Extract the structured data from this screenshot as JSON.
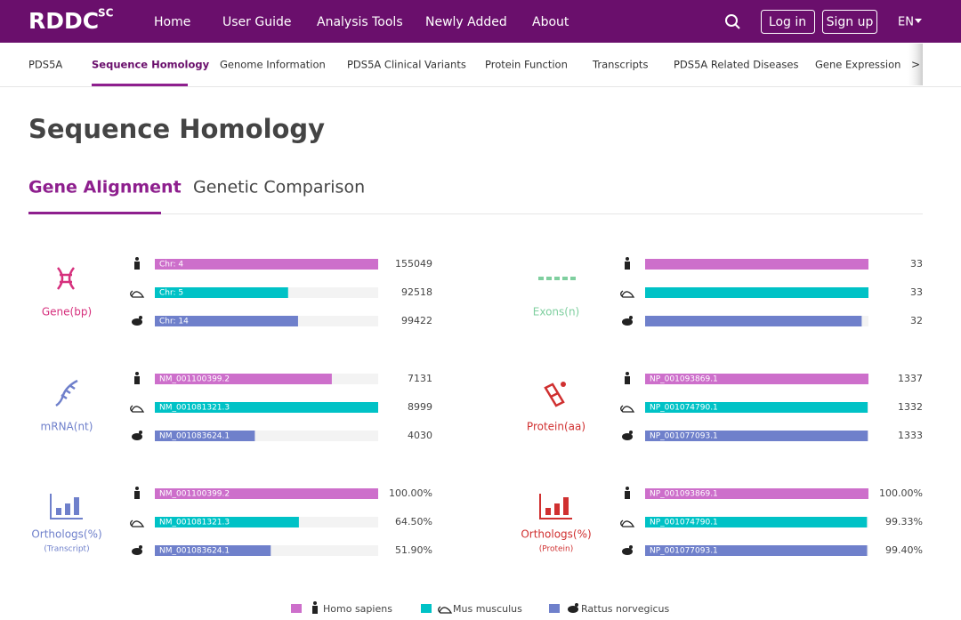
{
  "header": {
    "logo": "RDDC",
    "logo_sup": "SC",
    "nav": [
      "Home",
      "User Guide",
      "Analysis Tools",
      "Newly Added",
      "About"
    ],
    "login": "Log in",
    "signup": "Sign up",
    "lang": "EN"
  },
  "subnav": {
    "items": [
      "PDS5A",
      "Sequence Homology",
      "Genome Information",
      "PDS5A Clinical Variants",
      "Protein Function",
      "Transcripts",
      "PDS5A Related Diseases",
      "Gene Expression"
    ],
    "more": ">"
  },
  "page": {
    "title": "Sequence Homology",
    "tabs": [
      "Gene Alignment",
      "Genetic Comparison"
    ]
  },
  "legend": [
    "Homo sapiens",
    "Mus musculus",
    "Rattus norvegicus"
  ],
  "colors": [
    "#cd6fcb",
    "#00c2c6",
    "#6f80cb"
  ],
  "panels": [
    {
      "label": "Gene(bp)",
      "color": "#d6307d",
      "tags": [
        "Chr: 4",
        "Chr: 5",
        "Chr: 14"
      ],
      "values": [
        155049,
        92518,
        99422
      ]
    },
    {
      "label": "Exons(n)",
      "color": "#7fcf9f",
      "values": [
        33,
        33,
        32
      ]
    },
    {
      "label": "mRNA(nt)",
      "color": "#6f80cb",
      "tags": [
        "NM_001100399.2",
        "NM_001081321.3",
        "NM_001083624.1"
      ],
      "values": [
        7131,
        8999,
        4030
      ]
    },
    {
      "label": "Protein(aa)",
      "color": "#d03030",
      "tags": [
        "NP_001093869.1",
        "NP_001074790.1",
        "NP_001077093.1"
      ],
      "values": [
        1337,
        1332,
        1333
      ]
    },
    {
      "label": "Orthologs(%)",
      "sublabel": "(Transcript)",
      "color": "#6f80cb",
      "tags": [
        "NM_001100399.2",
        "NM_001081321.3",
        "NM_001083624.1"
      ],
      "values": [
        100,
        64.5,
        51.9
      ],
      "value_labels": [
        "100.00%",
        "64.50%",
        "51.90%"
      ]
    },
    {
      "label": "Orthologs(%)",
      "sublabel": "(Protein)",
      "color": "#d03030",
      "tags": [
        "NP_001093869.1",
        "NP_001074790.1",
        "NP_001077093.1"
      ],
      "values": [
        100,
        99.33,
        99.4
      ],
      "value_labels": [
        "100.00%",
        "99.33%",
        "99.40%"
      ]
    }
  ]
}
